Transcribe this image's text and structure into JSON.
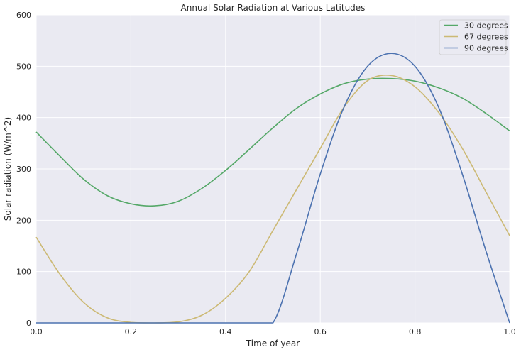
{
  "chart_data": {
    "type": "line",
    "title": "Annual Solar Radiation at Various Latitudes",
    "xlabel": "Time of year",
    "ylabel": "Solar radiation (W/m^2)",
    "xlim": [
      0,
      1
    ],
    "ylim": [
      0,
      600
    ],
    "xticks": [
      "0.0",
      "0.2",
      "0.4",
      "0.6",
      "0.8",
      "1.0"
    ],
    "yticks": [
      "0",
      "100",
      "200",
      "300",
      "400",
      "500",
      "600"
    ],
    "grid": true,
    "legend_position": "top-right",
    "x": [
      0.0,
      0.05,
      0.1,
      0.15,
      0.2,
      0.25,
      0.3,
      0.35,
      0.4,
      0.45,
      0.5,
      0.55,
      0.6,
      0.65,
      0.7,
      0.75,
      0.8,
      0.85,
      0.9,
      0.95,
      1.0
    ],
    "series": [
      {
        "name": "30 degrees",
        "color": "#55a868",
        "values": [
          372,
          325,
          280,
          248,
          232,
          228,
          237,
          262,
          297,
          338,
          380,
          418,
          446,
          466,
          475,
          476,
          471,
          458,
          438,
          408,
          374
        ]
      },
      {
        "name": "67 degrees",
        "color": "#ccb974",
        "values": [
          167,
          95,
          40,
          10,
          1,
          0,
          2,
          15,
          48,
          100,
          180,
          260,
          340,
          420,
          472,
          482,
          460,
          410,
          340,
          255,
          170
        ]
      },
      {
        "name": "90 degrees",
        "color": "#4c72b0",
        "values": [
          0,
          0,
          0,
          0,
          0,
          0,
          0,
          0,
          0,
          0,
          0,
          135,
          290,
          420,
          500,
          525,
          500,
          420,
          290,
          140,
          0
        ]
      }
    ]
  }
}
